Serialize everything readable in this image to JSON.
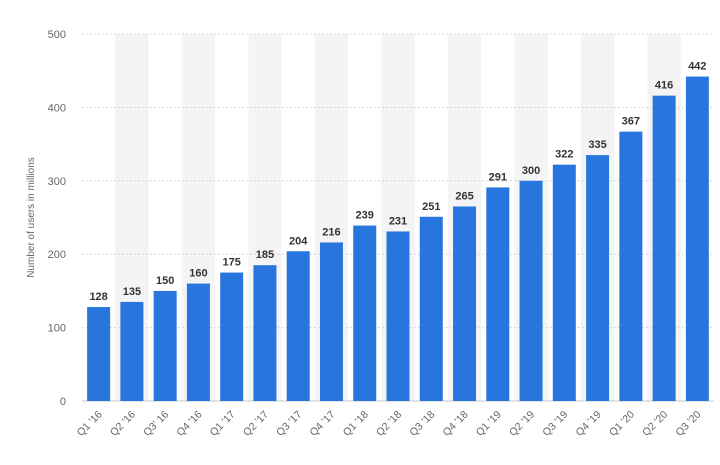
{
  "chart_data": {
    "type": "bar",
    "title": "",
    "xlabel": "",
    "ylabel": "Number of users in millions",
    "ylim": [
      0,
      500
    ],
    "yticks": [
      0,
      100,
      200,
      300,
      400,
      500
    ],
    "grid": true,
    "categories": [
      "Q1 '16",
      "Q2 '16",
      "Q3' 16",
      "Q4 '16",
      "Q1 '17",
      "Q2 '17",
      "Q3 '17",
      "Q4 '17",
      "Q1 '18",
      "Q2 '18",
      "Q3 '18",
      "Q4 '18",
      "Q1 '19",
      "Q2 '19",
      "Q3 '19",
      "Q4 '19",
      "Q1 '20",
      "Q2 '20",
      "Q3 '20"
    ],
    "values": [
      128,
      135,
      150,
      160,
      175,
      185,
      204,
      216,
      239,
      231,
      251,
      265,
      291,
      300,
      322,
      335,
      367,
      416,
      442
    ],
    "colors": {
      "bar": "#2876dd",
      "stripe": "#f4f4f6",
      "grid": "#c8c8c8",
      "axis_text": "#666666",
      "value_text": "#333333"
    }
  }
}
